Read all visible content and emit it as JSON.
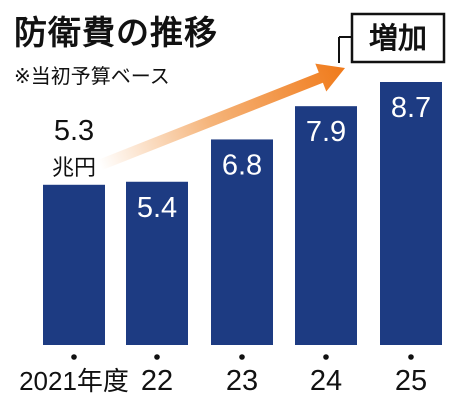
{
  "chart_data": {
    "type": "bar",
    "title": "防衛費の推移",
    "subtitle": "※当初予算ベース",
    "categories": [
      "2021年度",
      "22",
      "23",
      "24",
      "25"
    ],
    "values": [
      5.3,
      5.4,
      6.8,
      7.9,
      8.7
    ],
    "value_labels": [
      "5.3",
      "5.4",
      "6.8",
      "7.9",
      "8.7"
    ],
    "unit_label": "兆円",
    "annotation": "増加",
    "ylim": [
      0,
      8.7
    ],
    "bar_color": "#1d3b82",
    "arrow_color": "#f07a1a"
  }
}
